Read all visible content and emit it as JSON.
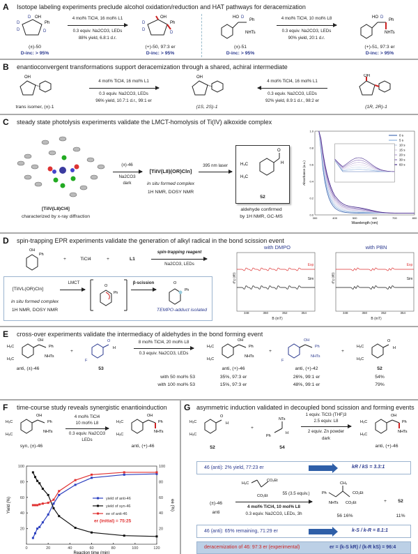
{
  "panels": {
    "A": {
      "letter": "A",
      "title": "Isotope labeling experiments preclude alcohol oxidation/reduction and HAT pathways for deracemization",
      "left": {
        "sm": "(±)-50",
        "sm_dinc": "D-inc: > 95%",
        "cond1": "4 mol% TiCl4, 16 mol% L1",
        "cond2": "0.3 equiv. Na2CO3, LEDs",
        "cond3": "88% yield, 6.8:1 d.r.",
        "pr": "(+)-50, 97:3 er",
        "pr_dinc": "D-inc: > 95%"
      },
      "right": {
        "sm": "(±)-51",
        "sm_dinc": "D-inc: > 95%",
        "cond1": "4 mol% TiCl4, 10 mol% L8",
        "cond2": "0.3 equiv. Na2CO3, LEDs",
        "cond3": "90% yield, 20:1 d.r.",
        "pr": "(+)-51, 97:3 er",
        "pr_dinc": "D-inc: > 95%"
      }
    },
    "B": {
      "letter": "B",
      "title": "enantioconvergent transformations support deracemization through a shared, achiral intermediate",
      "left_sm": "trans isomer, (±)-1",
      "center": "(1S, 2S)-1",
      "right_sm": "(1R, 2R)-1",
      "left_cond": [
        "4 mol% TiCl4, 16 mol% L1",
        "0.3 equiv. Na2CO3, LEDs",
        "96% yield, 10.7:1 d.r., 99:1 er"
      ],
      "right_cond": [
        "4 mol% TiCl4, 16 mol% L1",
        "0.3 equiv. Na2CO3, LEDs",
        "92% yield, 8.9:1 d.r., 98:2 er"
      ]
    },
    "C": {
      "letter": "C",
      "title": "steady state photolysis experiments validate the LMCT-homolysis of Ti(IV) alkoxide complex",
      "crystal_name": "[TiIV(L8)Cl4]",
      "crystal_note": "characterized by x-ray diffraction",
      "cond1": [
        "(±)-46",
        "Na2CO3",
        "dark"
      ],
      "complex": "[TiIV(L8)(OR)Cln]",
      "complex_note": "in situ formed complex",
      "complex_note2": "1H NMR, DOSY NMR",
      "laser": "395 nm laser",
      "aldehyde_num": "52",
      "aldehyde_note": [
        "aldehyde confirmed",
        "by 1H NMR, GC-MS"
      ],
      "uv_chart": {
        "type": "line",
        "xlabel": "Wavelength (nm)",
        "ylabel": "Absorbance (a.u.)",
        "xlim": [
          300,
          800
        ],
        "ylim": [
          0,
          1.0
        ],
        "xticks": [
          "300",
          "400",
          "500",
          "600",
          "700",
          "800"
        ],
        "yticks": [
          "0.0",
          "0.2",
          "0.4",
          "0.6",
          "0.8",
          "1.0"
        ],
        "legend": [
          "0 s",
          "5 s",
          "10 s",
          "15 s",
          "20 s",
          "30 s",
          "60 s"
        ],
        "legend_position": "top-right",
        "colors": [
          "#4a6fb5",
          "#8fb3de",
          "#c4d2ea",
          "#d6cbe6",
          "#b7a4d4",
          "#8e73bb",
          "#4b2f8f"
        ]
      }
    },
    "D": {
      "letter": "D",
      "title": "spin-trapping EPR experiments validate the generation of alkyl radical in the bond scission event",
      "reagents": [
        "+",
        "TiCl4",
        "+",
        "L1"
      ],
      "arrow_top": "spin-trapping reagent",
      "arrow_bottom": "Na2CO3, LEDs",
      "box": {
        "complex": "[TiIVL(OR)Cln]",
        "lmct": "LMCT",
        "beta": "β-scission",
        "note1": "in situ formed  complex",
        "note2": "1H NMR, DOSY NMR",
        "tempo": "TEMPO-adduct isolated"
      },
      "epr": [
        {
          "title": "with DMPO",
          "exp": "Exp",
          "sim": "Sim",
          "xlabel": "B (mT)",
          "ylabel": "d\"χ (dB)",
          "xticks": [
            "348",
            "350",
            "352",
            "354"
          ]
        },
        {
          "title": "with PBN",
          "exp": "Exp",
          "sim": "Sim",
          "xlabel": "B (mT)",
          "ylabel": "d\"χ (dB)",
          "xticks": [
            "348",
            "350",
            "352",
            "354"
          ]
        }
      ]
    },
    "E": {
      "letter": "E",
      "title": "cross-over experiments validate the intermediacy of aldehydes in the bond forming event",
      "sm1": "anti, (±)-46",
      "sm2": "53",
      "cond1": "8 mol% TiCl4, 20 mol% L8",
      "cond2": "0.3 equiv. Na2CO3, LEDs",
      "products": [
        "anti, (+)-46",
        "anti, (+)-42",
        "52"
      ],
      "rows": [
        {
          "label": "with 50 mol% 53",
          "values": [
            "35%, 97:3 er",
            "26%, 99:1 er",
            "54%"
          ]
        },
        {
          "label": "with 100 mol% 53",
          "values": [
            "15%, 97:3 er",
            "48%, 99:1 er",
            "79%"
          ]
        }
      ]
    },
    "F": {
      "letter": "F",
      "title": "time-course study reveals synergistic enantioinduction",
      "sm": "syn, (±)-46",
      "pr": "anti, (+)-46",
      "cond": [
        "4 mol% TiCl4",
        "10 mol% L8",
        "0.3 equiv. Na2CO3",
        "LEDs"
      ],
      "er_note": "er (initial) = 75:25"
    },
    "G": {
      "letter": "G",
      "title": "asymmetric induction validated in decoupled bond scission and forming events",
      "s1": {
        "sm1": "52",
        "sm2": "54",
        "cond": [
          "1 equiv. TiCl3·(THF)3",
          "2.5 equiv. L8",
          "2 equiv. Zn powder",
          "dark"
        ],
        "pr": "anti, (+)-46"
      },
      "box1": {
        "left": "46 (anti): 2% yield, 77:23 er",
        "right": "kR / kS =  3.3:1"
      },
      "s2": {
        "sm": "(±)-46",
        "sm_note": "anti",
        "reagent": "55 (3.5 equiv.)",
        "cond": [
          "4 mol% TiCl4, 10 mol% L8",
          "0.3 equiv. Na2CO3, LEDs, 3h"
        ],
        "pr1": "56  16%",
        "plus": "+",
        "pr2": "52",
        "pr2_yield": "11%"
      },
      "box2": {
        "left": "46 (anti): 65% remaining, 71:29 er",
        "right": "k-S / k-R =  8.1:1"
      },
      "box3": {
        "left": "deracemization of 46:  97:3 er (experimental)",
        "right": "er = (k-S kR) / (k-R kS) = 96:4"
      }
    }
  },
  "chart_data": {
    "type": "line",
    "xlabel": "Reaction time (min)",
    "ylabel": "Yield (%)",
    "y2label": "ee (%)",
    "xlim": [
      0,
      120
    ],
    "ylim": [
      0,
      100
    ],
    "y2lim": [
      0,
      100
    ],
    "xticks": [
      "0",
      "20",
      "40",
      "60",
      "80",
      "100",
      "120"
    ],
    "yticks": [
      "20",
      "40",
      "60",
      "80",
      "100"
    ],
    "legend_position": "center-right",
    "x": [
      6,
      8,
      10,
      12,
      15,
      20,
      25,
      30,
      45,
      60,
      90,
      120
    ],
    "series": [
      {
        "name": "yield of anti-46",
        "color": "#2b3fbf",
        "values": [
          8,
          14,
          20,
          22,
          28,
          38,
          52,
          63,
          76,
          85,
          89,
          90
        ]
      },
      {
        "name": "yield of syn-46",
        "color": "#111111",
        "values": [
          92,
          86,
          81,
          78,
          71,
          63,
          46,
          36,
          21,
          15,
          11,
          10
        ]
      },
      {
        "name": "ee of anti-46",
        "color": "#e03030",
        "values": [
          50,
          50,
          50,
          51,
          52,
          53,
          57,
          68,
          82,
          89,
          92,
          92
        ]
      }
    ]
  }
}
